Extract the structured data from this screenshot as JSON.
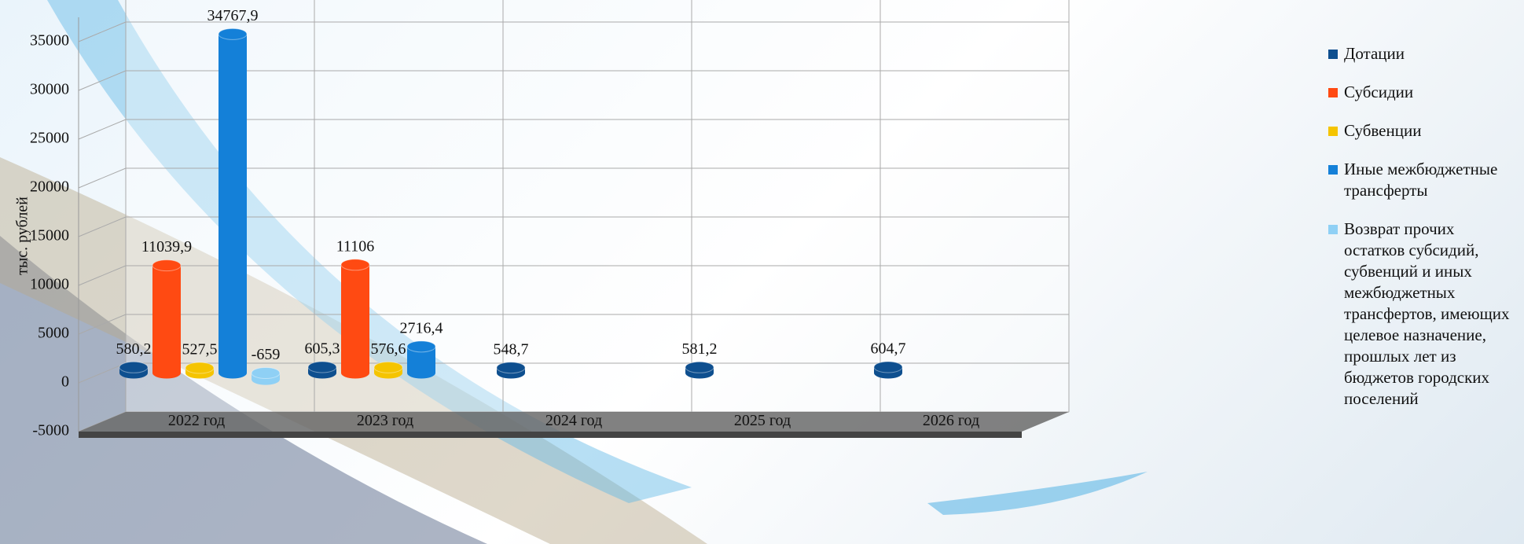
{
  "chart_data": {
    "type": "bar3d",
    "y_label": "тыс. рублей",
    "categories": [
      "2022 год",
      "2023 год",
      "2024 год",
      "2025 год",
      "2026 год"
    ],
    "series": [
      {
        "name": "Дотации",
        "color": "#0e4f8f",
        "values": [
          580.2,
          605.3,
          548.7,
          581.2,
          604.7
        ],
        "value_labels": [
          "580,2",
          "605,3",
          "548,7",
          "581,2",
          "604,7"
        ]
      },
      {
        "name": "Субсидии",
        "color": "#ff4a12",
        "values": [
          11039.9,
          11106,
          null,
          null,
          null
        ],
        "value_labels": [
          "11039,9",
          "11106",
          null,
          null,
          null
        ]
      },
      {
        "name": "Субвенции",
        "color": "#f5c400",
        "values": [
          527.5,
          576.6,
          null,
          null,
          null
        ],
        "value_labels": [
          "527,5",
          "576,6",
          null,
          null,
          null
        ]
      },
      {
        "name": "Иные межбюджетные трансферты",
        "color": "#1480d8",
        "values": [
          34767.9,
          2716.4,
          null,
          null,
          null
        ],
        "value_labels": [
          "34767,9",
          "2716,4",
          null,
          null,
          null
        ]
      },
      {
        "name": "Возврат прочих остатков субсидий, субвенций и иных межбюджетных трансфертов, имеющих целевое назначение, прошлых лет из бюджетов городских поселений",
        "color": "#8fd0f5",
        "values": [
          -659,
          null,
          null,
          null,
          null
        ],
        "value_labels": [
          "-659",
          null,
          null,
          null,
          null
        ]
      }
    ],
    "ylim": [
      -5000,
      37500
    ],
    "yticks": [
      -5000,
      0,
      5000,
      10000,
      15000,
      20000,
      25000,
      30000,
      35000
    ],
    "grid": true
  }
}
